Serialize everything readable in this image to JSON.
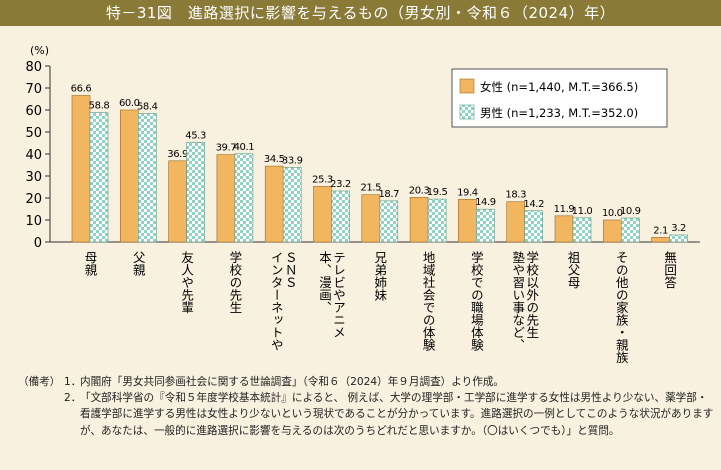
{
  "figure": {
    "title": "特－31図　進路選択に影響を与えるもの（男女別・令和６（2024）年）"
  },
  "chart_data": {
    "type": "bar",
    "ylabel": "(%)",
    "ylim": [
      0,
      80
    ],
    "yticks": [
      0,
      10,
      20,
      30,
      40,
      50,
      60,
      70,
      80
    ],
    "grid": false,
    "legend_position": "top-right",
    "categories": [
      "母親",
      "父親",
      "友人や先輩",
      "学校の先生",
      "ＳＮＳ　インターネットや",
      "テレビやアニメ　本、漫画、",
      "兄弟姉妹",
      "地域社会での体験",
      "学校での職場体験",
      "学校以外の先生　塾や習い事など、",
      "祖父母",
      "その他の家族・親族",
      "無回答"
    ],
    "category_lines": [
      [
        "母親"
      ],
      [
        "父親"
      ],
      [
        "友人や先輩"
      ],
      [
        "学校の先生"
      ],
      [
        "ＳＮＳ",
        "インターネットや"
      ],
      [
        "テレビやアニメ",
        "本、漫画、"
      ],
      [
        "兄弟姉妹"
      ],
      [
        "地域社会での体験"
      ],
      [
        "学校での職場体験"
      ],
      [
        "学校以外の先生",
        "塾や習い事など、"
      ],
      [
        "祖父母"
      ],
      [
        "その他の家族・親族"
      ],
      [
        "無回答"
      ]
    ],
    "series": [
      {
        "name": "女性 (n=1,440, M.T.=366.5)",
        "color": "#f3b660",
        "values": [
          66.6,
          60.0,
          36.9,
          39.7,
          34.5,
          25.3,
          21.5,
          20.3,
          19.4,
          18.3,
          11.9,
          10.0,
          2.1
        ]
      },
      {
        "name": "男性 (n=1,233, M.T.=352.0)",
        "color": "#8fd4c0",
        "values": [
          58.8,
          58.4,
          45.3,
          40.1,
          33.9,
          23.2,
          18.7,
          19.5,
          14.9,
          14.2,
          11.0,
          10.9,
          3.2
        ]
      }
    ]
  },
  "notes": {
    "label": "（備考）",
    "items": [
      {
        "num": "1．",
        "text": "内閣府「男女共同参画社会に関する世論調査」（令和６（2024）年９月調査）より作成。"
      },
      {
        "num": "2．",
        "text": "「文部科学省の『令和５年度学校基本統計』によると、 例えば、大学の理学部・工学部に進学する女性は男性より少ない、薬学部・看護学部に進学する男性は女性より少ないという現状であることが分かっています。進路選択の一例としてこのような状況がありますが、あなたは、一般的に進路選択に影響を与えるのは次のうちどれだと思いますか。（〇はいくつでも）」と質問。"
      }
    ]
  }
}
